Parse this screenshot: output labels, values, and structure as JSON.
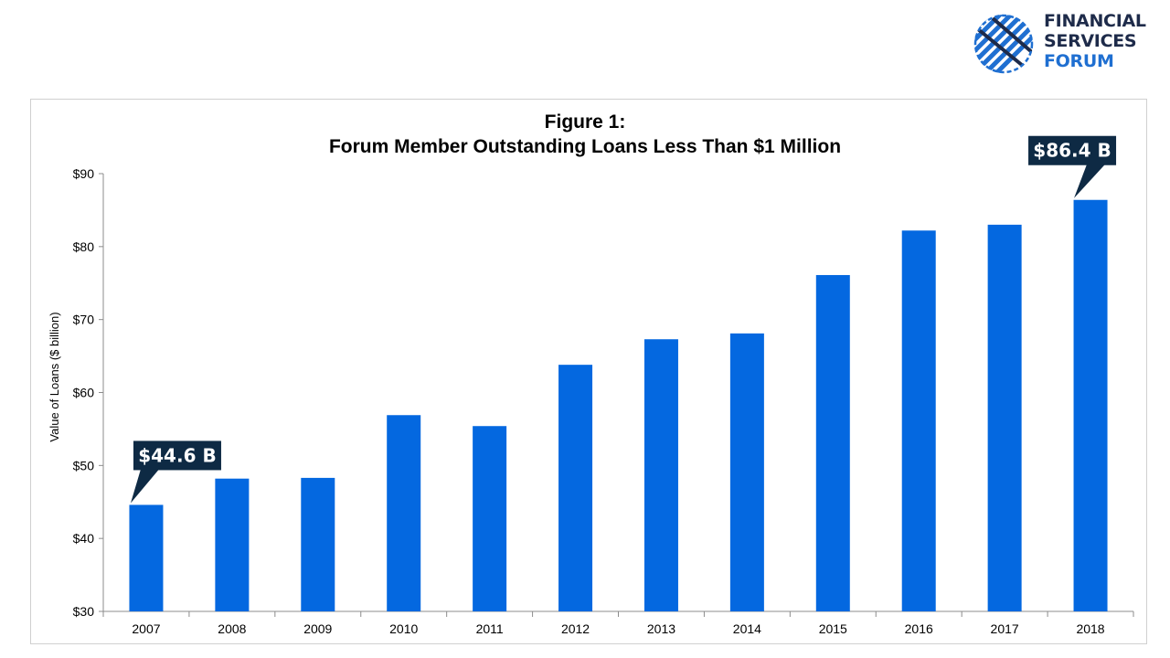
{
  "logo": {
    "line1": "FINANCIAL",
    "line2": "SERVICES",
    "line3": "FORUM",
    "color_dark": "#1e2b4a",
    "color_blue": "#1f6fd1"
  },
  "chart_data": {
    "type": "bar",
    "title": "Figure 1:",
    "subtitle": "Forum Member Outstanding Loans Less Than $1 Million",
    "xlabel": "",
    "ylabel": "Value of Loans ($ billion)",
    "categories": [
      "2007",
      "2008",
      "2009",
      "2010",
      "2011",
      "2012",
      "2013",
      "2014",
      "2015",
      "2016",
      "2017",
      "2018"
    ],
    "values": [
      44.6,
      48.2,
      48.3,
      56.9,
      55.4,
      63.8,
      67.3,
      68.1,
      76.1,
      82.2,
      83.0,
      86.4
    ],
    "ylim": [
      30,
      90
    ],
    "yticks": [
      {
        "value": 30,
        "label": "$30"
      },
      {
        "value": 40,
        "label": "$40"
      },
      {
        "value": 50,
        "label": "$50"
      },
      {
        "value": 60,
        "label": "$60"
      },
      {
        "value": 70,
        "label": "$70"
      },
      {
        "value": 80,
        "label": "$80"
      },
      {
        "value": 90,
        "label": "$90"
      }
    ],
    "grid": false,
    "bar_color": "#0468e0",
    "annotation_color": "#0e2a44",
    "annotations": [
      {
        "category": "2007",
        "label": "$44.6 B"
      },
      {
        "category": "2018",
        "label": "$86.4 B"
      }
    ]
  }
}
